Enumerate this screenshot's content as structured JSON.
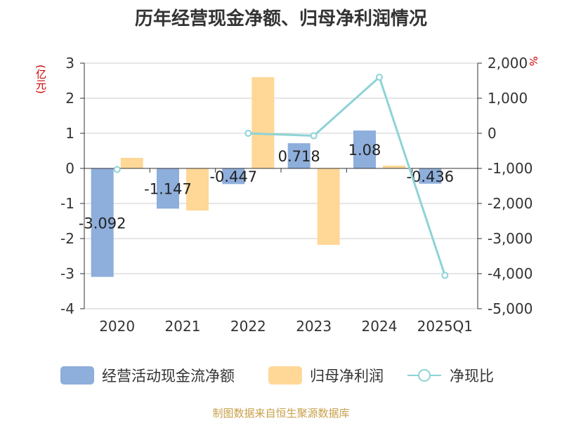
{
  "title": "历年经营现金净额、归母净利润情况",
  "units": {
    "left": "(亿元)",
    "right": "%"
  },
  "source": "制图数据来自恒生聚源数据库",
  "colors": {
    "cash": "#8eaedb",
    "profit": "#ffd797",
    "ratio": "#8dd3d6",
    "axis": "#333333",
    "grid": "#cccccc"
  },
  "chart_data": {
    "type": "bar",
    "categories": [
      "2020",
      "2021",
      "2022",
      "2023",
      "2024",
      "2025Q1"
    ],
    "series": [
      {
        "name": "经营活动现金流净额",
        "type": "bar",
        "axis": "left",
        "values": [
          -3.092,
          -1.147,
          -0.447,
          0.718,
          1.08,
          -0.436
        ],
        "labels": [
          "-3.092",
          "-1.147",
          "-0.447",
          "0.718",
          "1.08",
          "-0.436"
        ]
      },
      {
        "name": "归母净利润",
        "type": "bar",
        "axis": "left",
        "values": [
          0.3,
          -1.2,
          2.6,
          -2.18,
          0.08,
          null
        ]
      },
      {
        "name": "净现比",
        "type": "line",
        "axis": "right",
        "values": [
          -1030,
          null,
          0,
          -70,
          1600,
          -4050
        ]
      }
    ],
    "left_axis": {
      "ylim": [
        -4,
        3
      ],
      "ticks": [
        3,
        2,
        1,
        0,
        -1,
        -2,
        -3,
        -4
      ],
      "tick_labels": [
        "3",
        "2",
        "1",
        "0",
        "-1",
        "-2",
        "-3",
        "-4"
      ]
    },
    "right_axis": {
      "ylim": [
        -5000,
        2000
      ],
      "ticks": [
        2000,
        1000,
        0,
        -1000,
        -2000,
        -3000,
        -4000,
        -5000
      ],
      "tick_labels": [
        "2,000",
        "1,000",
        "0",
        "-1,000",
        "-2,000",
        "-3,000",
        "-4,000",
        "-5,000"
      ]
    },
    "grid": true,
    "legend_position": "bottom"
  }
}
